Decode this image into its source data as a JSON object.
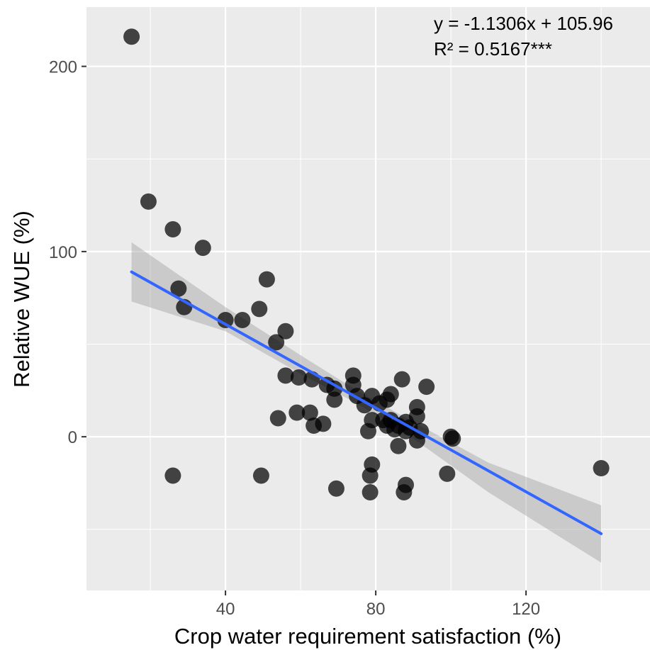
{
  "chart_data": {
    "type": "scatter",
    "xlabel": "Crop water requirement satisfaction (%)",
    "ylabel": "Relative WUE (%)",
    "xlim": [
      3,
      153
    ],
    "ylim": [
      -83,
      232
    ],
    "xticks": [
      40,
      80,
      120
    ],
    "yticks": [
      0,
      100,
      200
    ],
    "x_minor_grid": [
      20,
      60,
      100,
      140
    ],
    "y_minor_grid": [
      -50,
      50,
      150
    ],
    "grid": true,
    "panel_color": "#ebebeb",
    "point_color": "#000000",
    "line_color": "#3366ff",
    "band_color": "#999999",
    "annotations": [
      "y = -1.1306x + 105.96",
      "R² = 0.5167***"
    ],
    "fit": {
      "slope": -1.1306,
      "intercept": 105.96,
      "x_range": [
        15,
        140
      ],
      "band": [
        {
          "x": 15,
          "lo": 73,
          "hi": 105
        },
        {
          "x": 40,
          "lo": 57,
          "hi": 70
        },
        {
          "x": 60,
          "lo": 34,
          "hi": 44
        },
        {
          "x": 75,
          "lo": 18,
          "hi": 25
        },
        {
          "x": 90,
          "lo": -1,
          "hi": 8
        },
        {
          "x": 110,
          "lo": -30,
          "hi": -14
        },
        {
          "x": 140,
          "lo": -68,
          "hi": -37
        }
      ]
    },
    "points": [
      {
        "x": 15,
        "y": 216
      },
      {
        "x": 19.5,
        "y": 127
      },
      {
        "x": 26,
        "y": 112
      },
      {
        "x": 34,
        "y": 102
      },
      {
        "x": 27.5,
        "y": 80
      },
      {
        "x": 29,
        "y": 70
      },
      {
        "x": 51,
        "y": 85
      },
      {
        "x": 40,
        "y": 63
      },
      {
        "x": 44.5,
        "y": 63
      },
      {
        "x": 49,
        "y": 69
      },
      {
        "x": 56,
        "y": 57
      },
      {
        "x": 53.5,
        "y": 51
      },
      {
        "x": 56,
        "y": 33
      },
      {
        "x": 59.5,
        "y": 32
      },
      {
        "x": 63,
        "y": 31
      },
      {
        "x": 67,
        "y": 28
      },
      {
        "x": 69,
        "y": 26
      },
      {
        "x": 69,
        "y": 20
      },
      {
        "x": 74,
        "y": 33
      },
      {
        "x": 74,
        "y": 28
      },
      {
        "x": 75,
        "y": 22
      },
      {
        "x": 77,
        "y": 17
      },
      {
        "x": 79,
        "y": 22
      },
      {
        "x": 81,
        "y": 18
      },
      {
        "x": 83,
        "y": 20
      },
      {
        "x": 84,
        "y": 23
      },
      {
        "x": 87,
        "y": 31
      },
      {
        "x": 93.5,
        "y": 27
      },
      {
        "x": 91,
        "y": 16
      },
      {
        "x": 91,
        "y": 11
      },
      {
        "x": 59,
        "y": 13
      },
      {
        "x": 54,
        "y": 10
      },
      {
        "x": 62.5,
        "y": 13
      },
      {
        "x": 63.5,
        "y": 6
      },
      {
        "x": 66,
        "y": 7
      },
      {
        "x": 78,
        "y": 3
      },
      {
        "x": 79,
        "y": 9
      },
      {
        "x": 82,
        "y": 9
      },
      {
        "x": 83,
        "y": 6
      },
      {
        "x": 84,
        "y": 9
      },
      {
        "x": 85,
        "y": 4
      },
      {
        "x": 86,
        "y": 6
      },
      {
        "x": 88,
        "y": 8
      },
      {
        "x": 88,
        "y": 3
      },
      {
        "x": 89,
        "y": 5
      },
      {
        "x": 92,
        "y": 3
      },
      {
        "x": 91,
        "y": -2
      },
      {
        "x": 86,
        "y": -5
      },
      {
        "x": 100,
        "y": 0
      },
      {
        "x": 100.5,
        "y": -1
      },
      {
        "x": 99,
        "y": -20
      },
      {
        "x": 79,
        "y": -15
      },
      {
        "x": 78.5,
        "y": -21
      },
      {
        "x": 69.5,
        "y": -28
      },
      {
        "x": 78.5,
        "y": -30
      },
      {
        "x": 88,
        "y": -26
      },
      {
        "x": 87.5,
        "y": -30
      },
      {
        "x": 49.5,
        "y": -21
      },
      {
        "x": 26,
        "y": -21
      },
      {
        "x": 140,
        "y": -17
      }
    ]
  }
}
